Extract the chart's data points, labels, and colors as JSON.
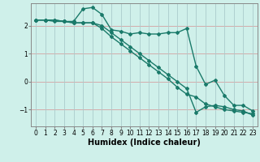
{
  "xlabel": "Humidex (Indice chaleur)",
  "ylabel": "",
  "background_color": "#cff0ea",
  "grid_color_h": "#d4a0a0",
  "grid_color_v": "#aacccc",
  "line_color": "#1a7a6a",
  "xlim": [
    -0.5,
    23.5
  ],
  "ylim": [
    -1.6,
    2.8
  ],
  "yticks": [
    -1,
    0,
    1,
    2
  ],
  "xticks": [
    0,
    1,
    2,
    3,
    4,
    5,
    6,
    7,
    8,
    9,
    10,
    11,
    12,
    13,
    14,
    15,
    16,
    17,
    18,
    19,
    20,
    21,
    22,
    23
  ],
  "line1_x": [
    0,
    1,
    2,
    3,
    4,
    5,
    6,
    7,
    8,
    9,
    10,
    11,
    12,
    13,
    14,
    15,
    16,
    17,
    18,
    19,
    20,
    21,
    22,
    23
  ],
  "line1_y": [
    2.2,
    2.2,
    2.2,
    2.15,
    2.15,
    2.6,
    2.65,
    2.4,
    1.85,
    1.8,
    1.7,
    1.75,
    1.7,
    1.7,
    1.75,
    1.75,
    1.9,
    0.55,
    -0.1,
    0.05,
    -0.5,
    -0.85,
    -0.85,
    -1.05
  ],
  "line2_x": [
    0,
    1,
    2,
    3,
    4,
    5,
    6,
    7,
    8,
    9,
    10,
    11,
    12,
    13,
    14,
    15,
    16,
    17,
    18,
    19,
    20,
    21,
    22,
    23
  ],
  "line2_y": [
    2.2,
    2.2,
    2.15,
    2.15,
    2.1,
    2.1,
    2.1,
    1.9,
    1.6,
    1.35,
    1.1,
    0.85,
    0.6,
    0.35,
    0.1,
    -0.2,
    -0.45,
    -0.55,
    -0.8,
    -0.9,
    -1.0,
    -1.05,
    -1.1,
    -1.15
  ],
  "line3_x": [
    0,
    1,
    2,
    3,
    4,
    5,
    6,
    7,
    8,
    9,
    10,
    11,
    12,
    13,
    14,
    15,
    16,
    17,
    18,
    19,
    20,
    21,
    22,
    23
  ],
  "line3_y": [
    2.2,
    2.2,
    2.2,
    2.15,
    2.1,
    2.1,
    2.1,
    2.0,
    1.75,
    1.5,
    1.25,
    1.0,
    0.75,
    0.5,
    0.25,
    0.0,
    -0.25,
    -1.1,
    -0.9,
    -0.85,
    -0.9,
    -1.0,
    -1.05,
    -1.2
  ],
  "marker": "D",
  "markersize": 2,
  "linewidth": 1.0,
  "xlabel_fontsize": 7,
  "tick_fontsize": 5.5
}
